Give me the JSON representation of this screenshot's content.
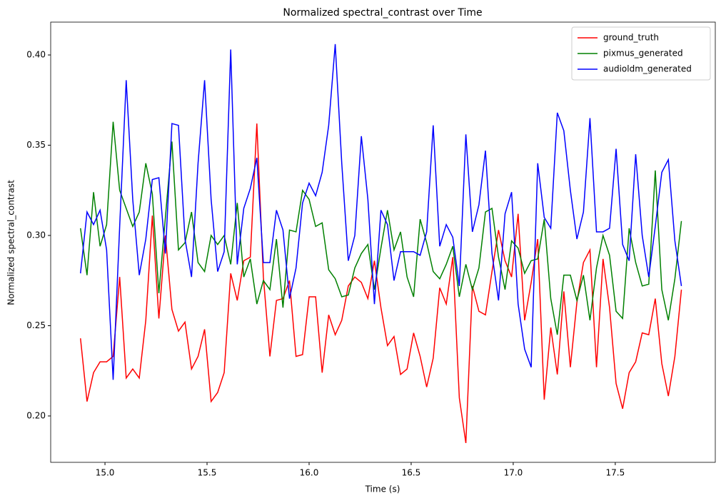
{
  "chart_data": {
    "type": "line",
    "title": "Normalized spectral_contrast over Time",
    "xlabel": "Time (s)",
    "ylabel": "Normalized spectral_contrast",
    "x": [
      14.88,
      14.912,
      14.944,
      14.976,
      15.008,
      15.04,
      15.072,
      15.104,
      15.136,
      15.168,
      15.2,
      15.232,
      15.264,
      15.296,
      15.328,
      15.36,
      15.392,
      15.424,
      15.456,
      15.488,
      15.52,
      15.552,
      15.584,
      15.616,
      15.648,
      15.68,
      15.712,
      15.744,
      15.776,
      15.808,
      15.84,
      15.872,
      15.904,
      15.936,
      15.968,
      16.0,
      16.032,
      16.064,
      16.096,
      16.128,
      16.16,
      16.192,
      16.224,
      16.256,
      16.288,
      16.32,
      16.352,
      16.384,
      16.416,
      16.448,
      16.48,
      16.512,
      16.544,
      16.576,
      16.608,
      16.64,
      16.672,
      16.704,
      16.736,
      16.768,
      16.8,
      16.832,
      16.864,
      16.896,
      16.928,
      16.96,
      16.992,
      17.024,
      17.056,
      17.088,
      17.12,
      17.152,
      17.184,
      17.216,
      17.248,
      17.28,
      17.312,
      17.344,
      17.376,
      17.408,
      17.44,
      17.472,
      17.504,
      17.536,
      17.568,
      17.6,
      17.632,
      17.664,
      17.696,
      17.728,
      17.76,
      17.792,
      17.824
    ],
    "series": [
      {
        "name": "ground_truth",
        "color": "#ff0000",
        "values": [
          0.243,
          0.208,
          0.224,
          0.23,
          0.23,
          0.233,
          0.277,
          0.221,
          0.226,
          0.221,
          0.253,
          0.311,
          0.254,
          0.3,
          0.259,
          0.247,
          0.252,
          0.226,
          0.233,
          0.248,
          0.208,
          0.213,
          0.224,
          0.279,
          0.264,
          0.286,
          0.288,
          0.362,
          0.277,
          0.233,
          0.264,
          0.265,
          0.275,
          0.233,
          0.234,
          0.266,
          0.266,
          0.224,
          0.256,
          0.245,
          0.253,
          0.272,
          0.277,
          0.274,
          0.265,
          0.286,
          0.26,
          0.239,
          0.244,
          0.223,
          0.226,
          0.246,
          0.233,
          0.216,
          0.232,
          0.271,
          0.262,
          0.288,
          0.21,
          0.185,
          0.272,
          0.258,
          0.256,
          0.28,
          0.303,
          0.286,
          0.277,
          0.312,
          0.253,
          0.274,
          0.298,
          0.209,
          0.249,
          0.223,
          0.269,
          0.227,
          0.263,
          0.285,
          0.292,
          0.227,
          0.287,
          0.26,
          0.218,
          0.204,
          0.224,
          0.23,
          0.246,
          0.245,
          0.265,
          0.229,
          0.211,
          0.233,
          0.27
        ]
      },
      {
        "name": "pixmus_generated",
        "color": "#008000",
        "values": [
          0.304,
          0.278,
          0.324,
          0.294,
          0.306,
          0.363,
          0.325,
          0.315,
          0.305,
          0.313,
          0.34,
          0.323,
          0.268,
          0.31,
          0.352,
          0.292,
          0.296,
          0.313,
          0.285,
          0.28,
          0.3,
          0.295,
          0.3,
          0.284,
          0.318,
          0.277,
          0.287,
          0.262,
          0.275,
          0.27,
          0.298,
          0.26,
          0.303,
          0.302,
          0.325,
          0.32,
          0.305,
          0.307,
          0.281,
          0.276,
          0.266,
          0.267,
          0.282,
          0.29,
          0.295,
          0.27,
          0.293,
          0.314,
          0.292,
          0.302,
          0.277,
          0.266,
          0.309,
          0.296,
          0.28,
          0.276,
          0.284,
          0.294,
          0.266,
          0.284,
          0.27,
          0.282,
          0.313,
          0.315,
          0.288,
          0.27,
          0.297,
          0.293,
          0.279,
          0.286,
          0.287,
          0.309,
          0.265,
          0.245,
          0.278,
          0.278,
          0.264,
          0.278,
          0.253,
          0.282,
          0.3,
          0.289,
          0.258,
          0.254,
          0.304,
          0.285,
          0.272,
          0.273,
          0.336,
          0.27,
          0.253,
          0.276,
          0.308
        ]
      },
      {
        "name": "audioldm_generated",
        "color": "#0000ff",
        "values": [
          0.279,
          0.313,
          0.306,
          0.314,
          0.292,
          0.22,
          0.305,
          0.386,
          0.32,
          0.278,
          0.298,
          0.331,
          0.332,
          0.29,
          0.362,
          0.361,
          0.298,
          0.277,
          0.34,
          0.386,
          0.32,
          0.28,
          0.291,
          0.403,
          0.284,
          0.315,
          0.326,
          0.343,
          0.285,
          0.285,
          0.314,
          0.303,
          0.265,
          0.282,
          0.318,
          0.329,
          0.322,
          0.335,
          0.361,
          0.406,
          0.34,
          0.286,
          0.3,
          0.355,
          0.32,
          0.262,
          0.314,
          0.306,
          0.275,
          0.291,
          0.291,
          0.291,
          0.289,
          0.302,
          0.361,
          0.294,
          0.306,
          0.299,
          0.272,
          0.356,
          0.302,
          0.317,
          0.347,
          0.29,
          0.264,
          0.312,
          0.324,
          0.262,
          0.237,
          0.227,
          0.34,
          0.31,
          0.304,
          0.368,
          0.358,
          0.325,
          0.298,
          0.313,
          0.365,
          0.302,
          0.302,
          0.304,
          0.348,
          0.295,
          0.286,
          0.345,
          0.3,
          0.277,
          0.305,
          0.335,
          0.342,
          0.297,
          0.272
        ]
      }
    ],
    "xlim": [
      14.734,
      17.99
    ],
    "ylim": [
      0.1743,
      0.4182
    ],
    "xticks": [
      {
        "value": 15.0,
        "label": "15.0"
      },
      15.5,
      {
        "value": 16.0,
        "label": "16.0"
      },
      16.5,
      {
        "value": 17.0,
        "label": "17.0"
      },
      17.5
    ],
    "yticks": [
      {
        "value": 0.2,
        "label": "0.20"
      },
      0.25,
      {
        "value": 0.3,
        "label": "0.30"
      },
      0.35,
      {
        "value": 0.4,
        "label": "0.40"
      }
    ],
    "legend": "upper right"
  }
}
